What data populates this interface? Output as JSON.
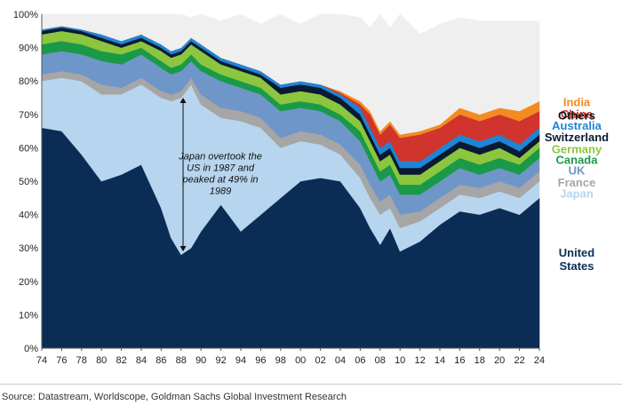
{
  "chart_data": {
    "type": "area",
    "stacked": true,
    "x_tick_labels": [
      "74",
      "76",
      "78",
      "80",
      "82",
      "84",
      "86",
      "88",
      "90",
      "92",
      "94",
      "96",
      "98",
      "00",
      "02",
      "04",
      "06",
      "08",
      "10",
      "12",
      "14",
      "16",
      "18",
      "20",
      "22",
      "24"
    ],
    "x_range": [
      1974,
      2024
    ],
    "y_tick_labels": [
      "0%",
      "10%",
      "20%",
      "30%",
      "40%",
      "50%",
      "60%",
      "70%",
      "80%",
      "90%",
      "100%"
    ],
    "ylim": [
      0,
      100
    ],
    "y_unit": "%",
    "x": [
      1974,
      1976,
      1978,
      1980,
      1982,
      1984,
      1986,
      1987,
      1988,
      1989,
      1990,
      1992,
      1994,
      1996,
      1998,
      2000,
      2002,
      2004,
      2006,
      2007,
      2008,
      2009,
      2010,
      2012,
      2014,
      2016,
      2018,
      2020,
      2022,
      2024
    ],
    "series": [
      {
        "name": "United States",
        "label_lines": [
          "United",
          "States"
        ],
        "color": "#0b2d55",
        "values": [
          66,
          65,
          58,
          50,
          52,
          55,
          42,
          33,
          28,
          30,
          35,
          43,
          35,
          40,
          45,
          50,
          51,
          50,
          42,
          36,
          31,
          36,
          29,
          32,
          37,
          41,
          40,
          42,
          40,
          45
        ]
      },
      {
        "name": "Japan",
        "label_lines": [
          "Japan"
        ],
        "color": "#b7d5ee",
        "values": [
          14,
          16,
          22,
          26,
          24,
          24,
          33,
          41,
          47,
          49,
          38,
          26,
          33,
          26,
          15,
          12,
          10,
          8,
          9,
          9,
          9,
          6,
          7,
          6,
          5,
          5,
          5,
          5,
          5,
          5
        ]
      },
      {
        "name": "France",
        "label_lines": [
          "France"
        ],
        "color": "#a6a6a6",
        "values": [
          2,
          2,
          2,
          3,
          2,
          2,
          2,
          2,
          2,
          2,
          3,
          3,
          3,
          3,
          3,
          3,
          3,
          3,
          4,
          4,
          4,
          4,
          4,
          3,
          3,
          3,
          3,
          3,
          3,
          3
        ]
      },
      {
        "name": "UK",
        "label_lines": [
          "UK"
        ],
        "color": "#6f96c8",
        "values": [
          6,
          6,
          6,
          7,
          7,
          7,
          7,
          6,
          6,
          5,
          7,
          8,
          7,
          7,
          8,
          7,
          7,
          7,
          7,
          7,
          6,
          6,
          6,
          5,
          5,
          5,
          4,
          4,
          4,
          4
        ]
      },
      {
        "name": "Canada",
        "label_lines": [
          "Canada"
        ],
        "color": "#1a9a48",
        "values": [
          3,
          3,
          3,
          3,
          3,
          2,
          2,
          2,
          2,
          2,
          2,
          2,
          2,
          2,
          2,
          2,
          2,
          2,
          3,
          3,
          3,
          3,
          3,
          3,
          3,
          3,
          3,
          3,
          3,
          3
        ]
      },
      {
        "name": "Germany",
        "label_lines": [
          "Germany"
        ],
        "color": "#8cc63f",
        "values": [
          3,
          3,
          3,
          3,
          2,
          2,
          3,
          3,
          3,
          3,
          4,
          3,
          3,
          3,
          3,
          3,
          3,
          3,
          3,
          3,
          3,
          3,
          3,
          3,
          3,
          3,
          3,
          3,
          2,
          2
        ]
      },
      {
        "name": "Switzerland",
        "label_lines": [
          "Switzerland"
        ],
        "color": "#0a1a33",
        "values": [
          1,
          1,
          1,
          1,
          1,
          1,
          1,
          1,
          1,
          1,
          1,
          1,
          1,
          1,
          2,
          2,
          2,
          2,
          2,
          2,
          2,
          2,
          2,
          2,
          2,
          2,
          2,
          2,
          2,
          2
        ]
      },
      {
        "name": "Australia",
        "label_lines": [
          "Australia"
        ],
        "color": "#1f84d6",
        "values": [
          0.5,
          0.5,
          0.5,
          1,
          1,
          1,
          1,
          1,
          1,
          1,
          1,
          1,
          1,
          1,
          1,
          1,
          1,
          1,
          2,
          2,
          2,
          2,
          2,
          2,
          2,
          2,
          2,
          2,
          2,
          2
        ]
      },
      {
        "name": "China",
        "label_lines": [
          "China"
        ],
        "color": "#d0342c",
        "values": [
          0,
          0,
          0,
          0,
          0,
          0,
          0,
          0,
          0,
          0,
          0,
          0,
          0,
          0,
          0,
          0,
          0,
          0.5,
          1,
          4,
          4,
          5,
          7,
          8,
          6,
          6,
          6,
          6,
          7,
          5
        ]
      },
      {
        "name": "India",
        "label_lines": [
          "India"
        ],
        "color": "#f28b22",
        "values": [
          0,
          0,
          0,
          0,
          0,
          0,
          0,
          0,
          0,
          0,
          0,
          0,
          0,
          0,
          0,
          0,
          0,
          0.5,
          1,
          1,
          1,
          1,
          1,
          1,
          1,
          2,
          2,
          2,
          3,
          3
        ]
      },
      {
        "name": "Others",
        "label_lines": [
          "Others"
        ],
        "color": "#efefef",
        "values": [
          4.5,
          3.5,
          4.5,
          6,
          8,
          6,
          9,
          11,
          10,
          6,
          9,
          11,
          15,
          14,
          21,
          17,
          21,
          23,
          25,
          25,
          35,
          28,
          36,
          29,
          30,
          27,
          28,
          26,
          27,
          24
        ]
      }
    ],
    "annotation": {
      "text_lines": [
        "Japan overtook the",
        "US in 1987 and",
        "peaked at 49% in",
        "1989"
      ],
      "arrow_year": 1988.2,
      "arrow_from_pct": 29,
      "arrow_to_pct": 75
    },
    "legend_order": [
      "Others",
      "India",
      "China",
      "Australia",
      "Switzerland",
      "Germany",
      "Canada",
      "UK",
      "France",
      "Japan",
      "United States"
    ],
    "source": "Source: Datastream, Worldscope, Goldman Sachs Global Investment Research"
  }
}
